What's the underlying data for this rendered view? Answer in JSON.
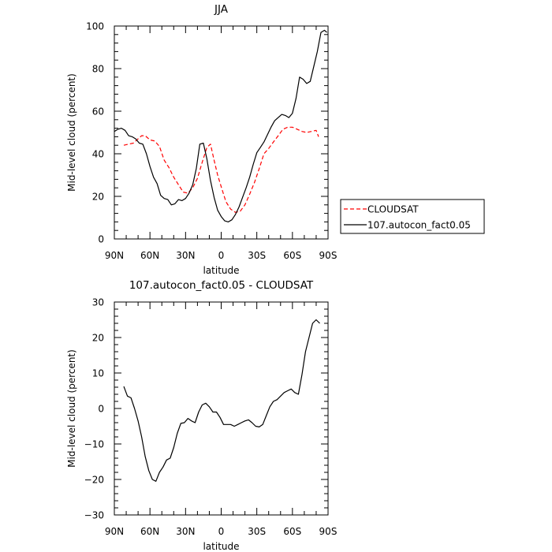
{
  "chart_data": [
    {
      "type": "line",
      "title": "JJA",
      "xlabel": "latitude",
      "ylabel": "Mid-level cloud (percent)",
      "xlim": [
        90,
        -90
      ],
      "ylim": [
        0,
        100
      ],
      "x_ticks": [
        90,
        60,
        30,
        0,
        -30,
        -60,
        -90
      ],
      "x_tick_labels": [
        "90N",
        "60N",
        "30N",
        "0",
        "30S",
        "60S",
        "90S"
      ],
      "y_ticks": [
        0,
        20,
        40,
        60,
        80,
        100
      ],
      "y_tick_labels": [
        "0",
        "20",
        "40",
        "60",
        "80",
        "100"
      ],
      "legend_position": "right",
      "series": [
        {
          "name": "CLOUDSAT",
          "color": "#ff0000",
          "dash": "dashed",
          "x": [
            82,
            78,
            74,
            71,
            67,
            64,
            60,
            56,
            52,
            48,
            44,
            40,
            36,
            32,
            28,
            24,
            20,
            16,
            12,
            9,
            6,
            3,
            0,
            -4,
            -8,
            -12,
            -16,
            -20,
            -24,
            -28,
            -32,
            -36,
            -40,
            -44,
            -48,
            -52,
            -56,
            -60,
            -64,
            -68,
            -72,
            -76,
            -80,
            -82
          ],
          "y": [
            44,
            44.5,
            45,
            46.5,
            48.5,
            48.5,
            46.5,
            46,
            43.5,
            37,
            33.5,
            29,
            25.5,
            22,
            21.5,
            24,
            28.5,
            36,
            43,
            44.5,
            37,
            30,
            24.5,
            17.5,
            14,
            12.5,
            13,
            16,
            21,
            26.5,
            33,
            40,
            42.5,
            45.5,
            48.5,
            51.5,
            52.5,
            52.5,
            51.5,
            50.5,
            50,
            50.5,
            51,
            48
          ]
        },
        {
          "name": "107.autocon_fact0.05",
          "color": "#000000",
          "dash": "solid",
          "x": [
            90,
            87,
            84,
            81,
            78,
            75,
            72,
            69,
            66,
            63,
            60,
            57,
            54,
            51,
            48,
            45,
            42,
            39,
            36,
            33,
            30,
            27,
            24,
            21,
            18,
            15,
            12,
            9,
            6,
            3,
            0,
            -3,
            -6,
            -9,
            -12,
            -15,
            -18,
            -21,
            -24,
            -27,
            -30,
            -33,
            -36,
            -39,
            -42,
            -45,
            -48,
            -51,
            -54,
            -57,
            -60,
            -63,
            -66,
            -69,
            -72,
            -75,
            -78,
            -81,
            -84,
            -87,
            -89
          ],
          "y": [
            50.5,
            51.5,
            52,
            51,
            48.5,
            48,
            47,
            45,
            44.5,
            40,
            34,
            29,
            26,
            20.5,
            19,
            18.5,
            16,
            16.5,
            18.5,
            18,
            19,
            21.5,
            25.5,
            33,
            44.5,
            45,
            37.5,
            27.5,
            19.5,
            13.5,
            10.5,
            8.5,
            8,
            9,
            11.5,
            15,
            19.5,
            24,
            29,
            35,
            40.5,
            43,
            45.5,
            49,
            52.5,
            55.5,
            57,
            58.5,
            58,
            57,
            59,
            66,
            76,
            75,
            73,
            74,
            81,
            88,
            97,
            98,
            97
          ]
        }
      ]
    },
    {
      "type": "line",
      "title": "107.autocon_fact0.05 - CLOUDSAT",
      "xlabel": "latitude",
      "ylabel": "Mid-level cloud (percent)",
      "xlim": [
        90,
        -90
      ],
      "ylim": [
        -30,
        30
      ],
      "x_ticks": [
        90,
        60,
        30,
        0,
        -30,
        -60,
        -90
      ],
      "x_tick_labels": [
        "90N",
        "60N",
        "30N",
        "0",
        "30S",
        "60S",
        "90S"
      ],
      "y_ticks": [
        -30,
        -20,
        -10,
        0,
        10,
        20,
        30
      ],
      "y_tick_labels": [
        "−30",
        "−20",
        "−10",
        "0",
        "10",
        "20",
        "30"
      ],
      "series": [
        {
          "color": "#000000",
          "dash": "solid",
          "x": [
            82,
            79,
            76,
            73,
            70,
            67,
            64,
            61,
            58,
            55,
            52,
            49,
            46,
            43,
            40,
            37,
            34,
            31,
            28,
            25,
            22,
            19,
            16,
            13,
            10,
            7,
            4,
            1,
            -2,
            -5,
            -8,
            -11,
            -14,
            -17,
            -20,
            -23,
            -26,
            -29,
            -32,
            -35,
            -38,
            -41,
            -44,
            -47,
            -50,
            -53,
            -56,
            -59,
            -62,
            -65,
            -68,
            -71,
            -74,
            -77,
            -80,
            -83
          ],
          "y": [
            6.2,
            3.5,
            3,
            0,
            -3.5,
            -8,
            -13.5,
            -17.5,
            -20,
            -20.5,
            -18,
            -16.5,
            -14.5,
            -14,
            -11,
            -7,
            -4.2,
            -4,
            -2.8,
            -3.5,
            -4,
            -1,
            1,
            1.5,
            0.5,
            -1,
            -1,
            -2.5,
            -4.5,
            -4.5,
            -4.5,
            -5,
            -4.5,
            -4,
            -3.5,
            -3.2,
            -4,
            -5,
            -5.2,
            -4.5,
            -2,
            0.5,
            2,
            2.5,
            3.5,
            4.5,
            5,
            5.5,
            4.5,
            4,
            9.5,
            16,
            20,
            24,
            25,
            24
          ]
        }
      ]
    }
  ]
}
